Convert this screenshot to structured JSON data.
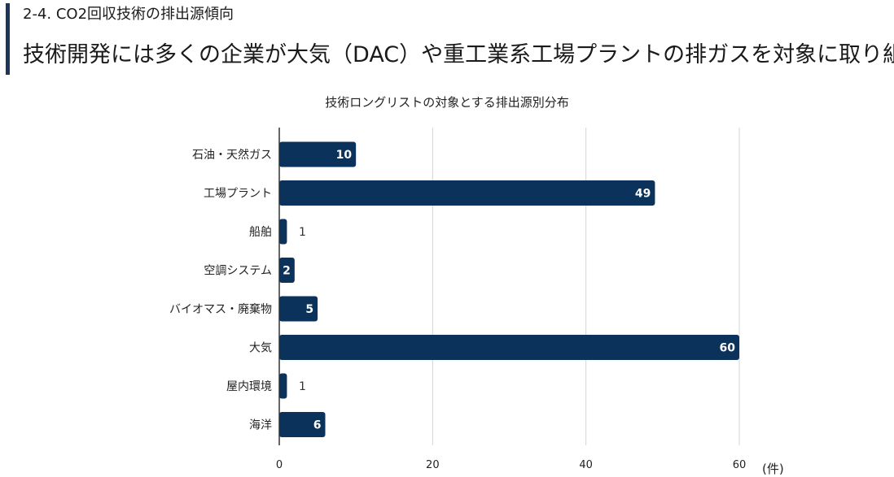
{
  "header": {
    "section": "2-4. CO2回収技術の排出源傾向",
    "headline": "技術開発には多くの企業が大気（DAC）や重工業系工場プラントの排ガスを対象に取り組む"
  },
  "colors": {
    "accent": "#1f3558",
    "bar": "#0b325a",
    "grid": "#d4d4d4",
    "axis": "#333333"
  },
  "chart_data": {
    "type": "bar",
    "orientation": "horizontal",
    "title": "技術ロングリストの対象とする排出源別分布",
    "categories": [
      "石油・天然ガス",
      "工場プラント",
      "船舶",
      "空調システム",
      "バイオマス・廃棄物",
      "大気",
      "屋内環境",
      "海洋"
    ],
    "values": [
      10,
      49,
      1,
      2,
      5,
      60,
      1,
      6
    ],
    "xlim": [
      0,
      60
    ],
    "xticks": [
      0,
      20,
      40,
      60
    ],
    "unit": "(件)",
    "grid": true,
    "data_labels": true
  }
}
